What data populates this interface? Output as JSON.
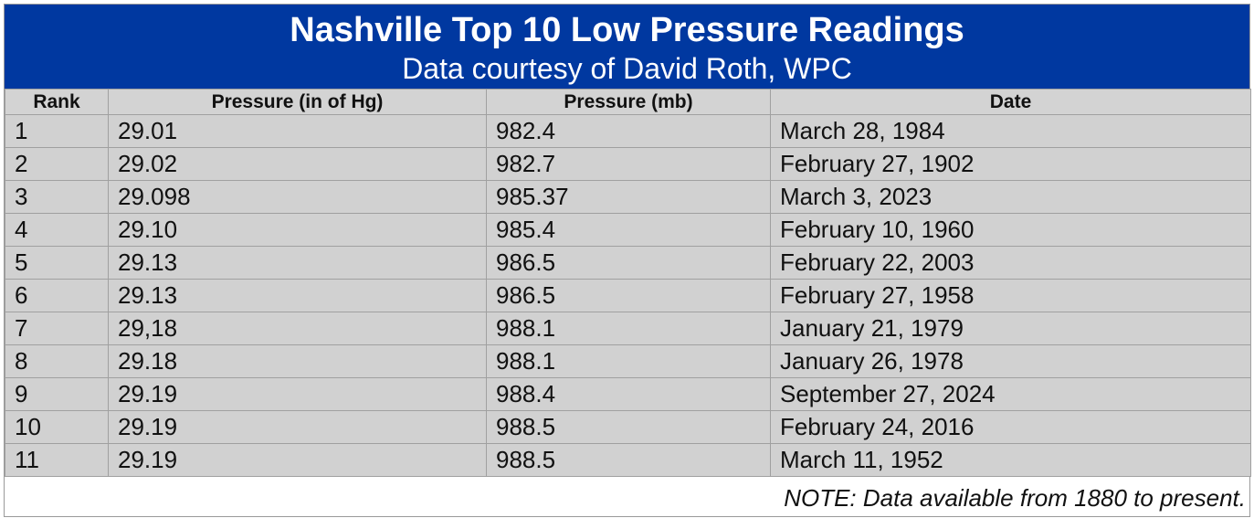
{
  "header": {
    "title": "Nashville Top 10 Low Pressure Readings",
    "subtitle": "Data courtesy of David Roth, WPC",
    "background_color": "#0038a0"
  },
  "table": {
    "columns": [
      "Rank",
      "Pressure (in of Hg)",
      "Pressure (mb)",
      "Date"
    ],
    "rows": [
      {
        "rank": "1",
        "inhg": "29.01",
        "mb": "982.4",
        "date": "March 28, 1984"
      },
      {
        "rank": "2",
        "inhg": "29.02",
        "mb": "982.7",
        "date": "February 27, 1902"
      },
      {
        "rank": "3",
        "inhg": "29.098",
        "mb": "985.37",
        "date": "March 3, 2023"
      },
      {
        "rank": "4",
        "inhg": "29.10",
        "mb": "985.4",
        "date": "February 10, 1960"
      },
      {
        "rank": "5",
        "inhg": "29.13",
        "mb": "986.5",
        "date": "February 22, 2003"
      },
      {
        "rank": "6",
        "inhg": "29.13",
        "mb": "986.5",
        "date": "February 27, 1958"
      },
      {
        "rank": "7",
        "inhg": "29,18",
        "mb": "988.1",
        "date": "January 21, 1979"
      },
      {
        "rank": "8",
        "inhg": "29.18",
        "mb": "988.1",
        "date": "January 26, 1978"
      },
      {
        "rank": "9",
        "inhg": "29.19",
        "mb": "988.4",
        "date": "September 27, 2024"
      },
      {
        "rank": "10",
        "inhg": "29.19",
        "mb": "988.5",
        "date": "February 24, 2016"
      },
      {
        "rank": "11",
        "inhg": "29.19",
        "mb": "988.5",
        "date": "March 11, 1952"
      }
    ]
  },
  "note": "NOTE: Data available from 1880 to present."
}
